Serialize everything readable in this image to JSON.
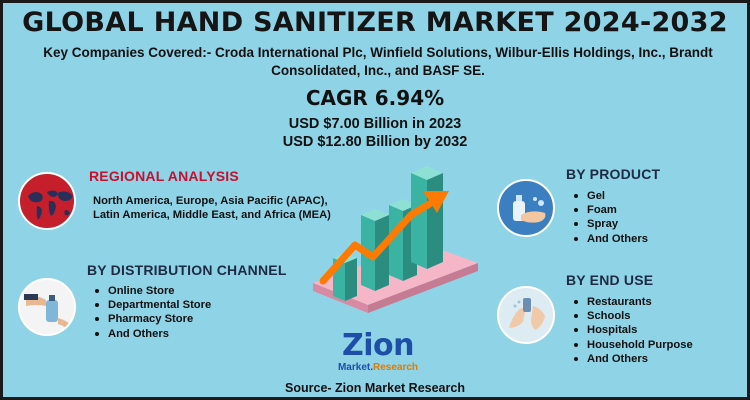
{
  "title": "GLOBAL HAND SANITIZER MARKET 2024-2032",
  "companies": "Key Companies Covered:- Croda International Plc, Winfield Solutions, Wilbur-Ellis Holdings, Inc., Brandt Consolidated, Inc., and BASF SE.",
  "cagr": "CAGR 6.94%",
  "value_2023": "USD $7.00 Billion in 2023",
  "value_2032": "USD $12.80 Billion by 2032",
  "regional": {
    "title": "REGIONAL ANALYSIS",
    "text": "North America, Europe, Asia Pacific (APAC), Latin America, Middle East, and Africa (MEA)"
  },
  "distribution": {
    "title": "BY DISTRIBUTION CHANNEL",
    "items": [
      "Online Store",
      "Departmental Store",
      "Pharmacy Store",
      "And Others"
    ]
  },
  "product": {
    "title": "BY PRODUCT",
    "items": [
      "Gel",
      "Foam",
      "Spray",
      "And Others"
    ]
  },
  "end_use": {
    "title": "BY END USE",
    "items": [
      "Restaurants",
      "Schools",
      "Hospitals",
      "Household Purpose",
      "And Others"
    ]
  },
  "logo": {
    "name": "Zion",
    "sub_a": "Market",
    "sub_b": "Research"
  },
  "source": "Source- Zion Market Research",
  "colors": {
    "background": "#8ed3e6",
    "section_red": "#c8102e",
    "section_navy": "#1f2a44",
    "bar": "#5cc7b8",
    "arrow": "#ff7a00",
    "logo_blue": "#1e4fa8"
  }
}
